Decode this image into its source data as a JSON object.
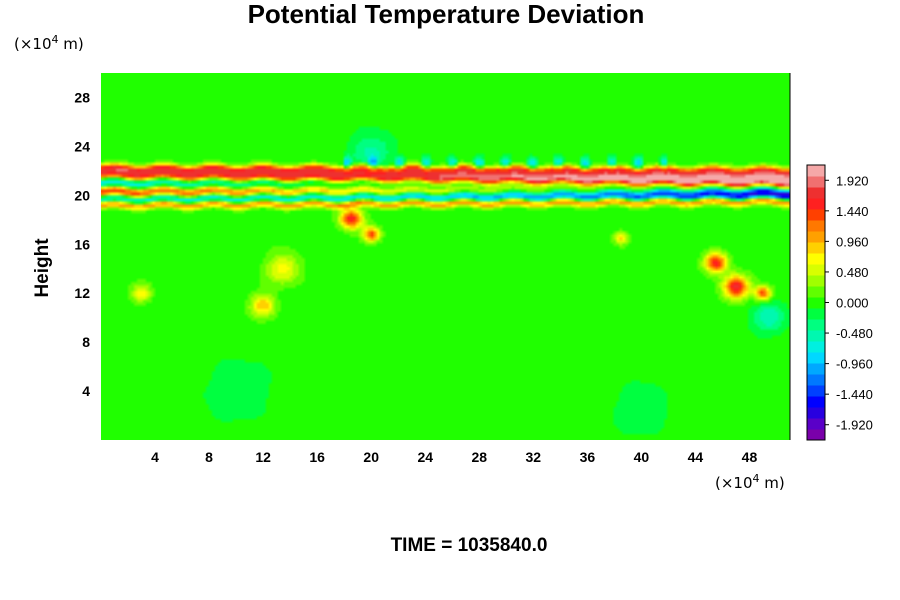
{
  "chart_data": {
    "type": "heatmap",
    "title": "Potential Temperature Deviation",
    "ylabel": "Height",
    "y_unit": "(×10",
    "x_unit": "(×10",
    "unit_exponent": "4",
    "unit_suffix": " m)",
    "xlim": [
      0,
      51
    ],
    "ylim": [
      0,
      30
    ],
    "x_ticks": [
      4,
      8,
      12,
      16,
      20,
      24,
      28,
      32,
      36,
      40,
      44,
      48
    ],
    "x_tick_labels": [
      "4",
      "8",
      "12",
      "16",
      "20",
      "24",
      "28",
      "32",
      "36",
      "40",
      "44",
      "48"
    ],
    "y_ticks": [
      4,
      8,
      12,
      16,
      20,
      24,
      28
    ],
    "y_tick_labels": [
      "4",
      "8",
      "12",
      "16",
      "20",
      "24",
      "28"
    ],
    "colorbar": {
      "min": -2.16,
      "max": 2.16,
      "tick_values": [
        1.92,
        1.44,
        0.96,
        0.48,
        0.0,
        -0.48,
        -0.96,
        -1.44,
        -1.92
      ],
      "tick_labels": [
        "1.920",
        "1.440",
        "0.960",
        "0.480",
        "0.000",
        "-0.480",
        "-0.960",
        "-1.440",
        "-1.920"
      ],
      "colors": [
        "#7a00aa",
        "#5a00c8",
        "#2800e0",
        "#0000ff",
        "#0040ff",
        "#0078ff",
        "#00a8ff",
        "#00d8ff",
        "#00f0e0",
        "#00f8b0",
        "#00ff80",
        "#00ff40",
        "#20ff00",
        "#60ff00",
        "#a0ff00",
        "#d8ff00",
        "#ffff00",
        "#ffd000",
        "#ffa000",
        "#ff7800",
        "#ff4000",
        "#ff2020",
        "#ee3030",
        "#f07070",
        "#f5a8a8"
      ]
    },
    "field_features": [
      {
        "kind": "band",
        "x": [
          0,
          51
        ],
        "y_center": [
          20.3,
          20.8
        ],
        "value": 2.1,
        "thickness": 0.7
      },
      {
        "kind": "band",
        "x": [
          0,
          51
        ],
        "y_center": [
          21.0,
          20.6
        ],
        "value": -2.0,
        "thickness": 0.6
      },
      {
        "kind": "band",
        "x": [
          0,
          51
        ],
        "y_center": [
          19.7,
          20.1
        ],
        "value": -1.6,
        "thickness": 0.4
      },
      {
        "kind": "band",
        "x": [
          0,
          51
        ],
        "y_center": [
          21.6,
          21.3
        ],
        "value": 2.0,
        "thickness": 0.5
      },
      {
        "kind": "band",
        "x": [
          0,
          51
        ],
        "y_center": [
          22.2,
          22.0
        ],
        "value": 1.2,
        "thickness": 0.35
      },
      {
        "kind": "band",
        "x": [
          0,
          51
        ],
        "y_center": [
          19.2,
          19.5
        ],
        "value": 1.2,
        "thickness": 0.3
      },
      {
        "kind": "blob",
        "x": 18.5,
        "y": 18.1,
        "value": 1.6,
        "r": 0.8
      },
      {
        "kind": "blob",
        "x": 20.0,
        "y": 16.8,
        "value": 1.4,
        "r": 0.6
      },
      {
        "kind": "blob",
        "x": 45.5,
        "y": 14.5,
        "value": 1.6,
        "r": 0.8
      },
      {
        "kind": "blob",
        "x": 47.0,
        "y": 12.5,
        "value": 1.7,
        "r": 0.9
      },
      {
        "kind": "blob",
        "x": 49.0,
        "y": 12.0,
        "value": 1.4,
        "r": 0.6
      },
      {
        "kind": "blob",
        "x": 12.0,
        "y": 11.0,
        "value": 0.9,
        "r": 0.9
      },
      {
        "kind": "blob",
        "x": 13.5,
        "y": 14.0,
        "value": 0.7,
        "r": 1.2
      },
      {
        "kind": "blob",
        "x": 3.0,
        "y": 12.0,
        "value": 0.7,
        "r": 0.7
      },
      {
        "kind": "blob",
        "x": 38.5,
        "y": 16.5,
        "value": 0.8,
        "r": 0.5
      },
      {
        "kind": "blob",
        "x": 49.5,
        "y": 10.0,
        "value": -0.6,
        "r": 1.2
      },
      {
        "kind": "blob",
        "x": 20.0,
        "y": 23.5,
        "value": -0.5,
        "r": 1.5
      },
      {
        "kind": "blob",
        "x": 10.0,
        "y": 4.0,
        "value": -0.25,
        "r": 2.5
      },
      {
        "kind": "blob",
        "x": 40.0,
        "y": 2.5,
        "value": -0.25,
        "r": 2.0
      }
    ]
  },
  "footer": {
    "time_label": "TIME = 1035840.0"
  }
}
